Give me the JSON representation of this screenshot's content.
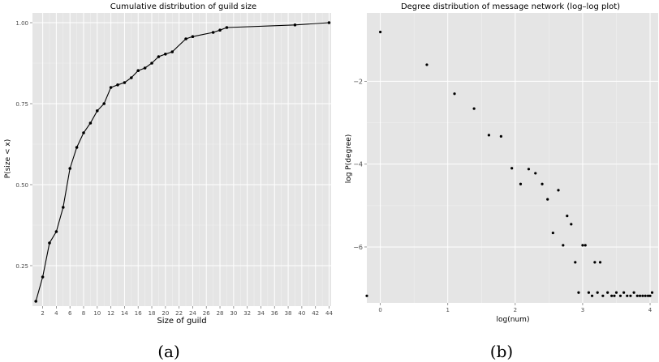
{
  "panel_captions": [
    "(a)",
    "(b)"
  ],
  "chart_data": [
    {
      "type": "line",
      "title": "Cumulative distribution of guild size",
      "xlabel": "Size of guild",
      "ylabel": "P(size < x)",
      "x_ticks": [
        2,
        4,
        6,
        8,
        10,
        12,
        14,
        16,
        18,
        20,
        22,
        24,
        26,
        28,
        30,
        32,
        34,
        36,
        38,
        40,
        42,
        44
      ],
      "y_ticks": [
        0.25,
        0.5,
        0.75,
        1.0
      ],
      "y_tick_labels": [
        "0.25",
        "0.50",
        "0.75",
        "1.00"
      ],
      "xlim": [
        0.5,
        44.3
      ],
      "ylim": [
        0.125,
        1.03
      ],
      "grid": true,
      "background": "#e5e5e5",
      "series": [
        {
          "x": [
            1,
            2,
            3,
            4,
            5,
            6,
            7,
            8,
            9,
            10,
            11,
            12,
            13,
            14,
            15,
            16,
            17,
            18,
            19,
            20,
            21,
            23,
            24,
            27,
            28,
            29,
            39,
            44
          ],
          "y": [
            0.14,
            0.215,
            0.32,
            0.355,
            0.43,
            0.55,
            0.615,
            0.66,
            0.69,
            0.728,
            0.75,
            0.8,
            0.808,
            0.815,
            0.83,
            0.852,
            0.86,
            0.875,
            0.895,
            0.903,
            0.91,
            0.95,
            0.957,
            0.97,
            0.977,
            0.985,
            0.993,
            1.0
          ]
        }
      ]
    },
    {
      "type": "scatter",
      "title": "Degree distribution of message network (log–log plot)",
      "xlabel": "log(num)",
      "ylabel": "log P(degree)",
      "x_ticks": [
        0,
        1,
        2,
        3,
        4
      ],
      "y_ticks": [
        -2,
        -4,
        -6
      ],
      "y_tick_labels": [
        "−2",
        "−4",
        "−6"
      ],
      "xlim": [
        -0.2,
        4.12
      ],
      "ylim": [
        -7.35,
        -0.35
      ],
      "grid": true,
      "background": "#e5e5e5",
      "series": [
        {
          "x": [
            -0.2,
            0.0,
            0.69,
            1.1,
            1.39,
            1.61,
            1.79,
            1.95,
            2.08,
            2.2,
            2.3,
            2.4,
            2.48,
            2.56,
            2.64,
            2.71,
            2.77,
            2.83,
            2.89,
            2.94,
            3.0,
            3.04,
            3.09,
            3.14,
            3.18,
            3.22,
            3.26,
            3.3,
            3.37,
            3.43,
            3.47,
            3.5,
            3.56,
            3.61,
            3.66,
            3.71,
            3.76,
            3.81,
            3.85,
            3.89,
            3.93,
            3.97,
            4.0,
            4.03
          ],
          "y": [
            -7.18,
            -0.81,
            -1.6,
            -2.3,
            -2.66,
            -3.3,
            -3.33,
            -4.1,
            -4.48,
            -4.12,
            -4.22,
            -4.48,
            -4.85,
            -5.66,
            -4.63,
            -5.96,
            -5.25,
            -5.45,
            -6.37,
            -7.1,
            -5.96,
            -5.96,
            -7.1,
            -7.18,
            -6.37,
            -7.1,
            -6.37,
            -7.18,
            -7.1,
            -7.18,
            -7.18,
            -7.1,
            -7.18,
            -7.1,
            -7.18,
            -7.18,
            -7.1,
            -7.18,
            -7.18,
            -7.18,
            -7.18,
            -7.18,
            -7.18,
            -7.1
          ]
        }
      ]
    }
  ]
}
